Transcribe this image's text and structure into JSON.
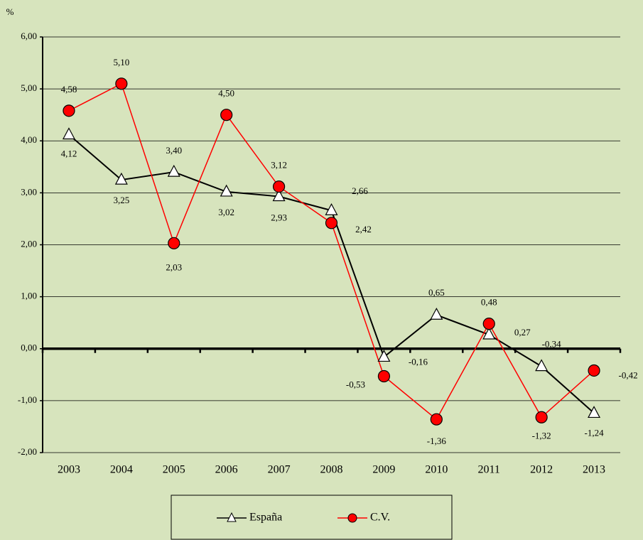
{
  "chart_data": {
    "type": "line",
    "y_unit": "%",
    "categories": [
      "2003",
      "2004",
      "2005",
      "2006",
      "2007",
      "2008",
      "2009",
      "2010",
      "2011",
      "2012",
      "2013"
    ],
    "series": [
      {
        "name": "España",
        "color": "#000000",
        "marker": "triangle",
        "values": [
          4.12,
          3.25,
          3.4,
          3.02,
          2.93,
          2.66,
          -0.16,
          0.65,
          0.27,
          -0.34,
          -1.24
        ],
        "value_labels": [
          "4,12",
          "3,25",
          "3,40",
          "3,02",
          "2,93",
          "2,66",
          "-0,16",
          "0,65",
          "0,27",
          "-0,34",
          "-1,24"
        ]
      },
      {
        "name": "C.V.",
        "color": "#ff0000",
        "marker": "circle",
        "values": [
          4.58,
          5.1,
          2.03,
          4.5,
          3.12,
          2.42,
          -0.53,
          -1.36,
          0.48,
          -1.32,
          -0.42
        ],
        "value_labels": [
          "4,58",
          "5,10",
          "2,03",
          "4,50",
          "3,12",
          "2,42",
          "-0,53",
          "-1,36",
          "0,48",
          "-1,32",
          "-0,42"
        ]
      }
    ],
    "ylim": [
      -2,
      6
    ],
    "yticks": [
      {
        "value": -2,
        "label": "-2,00"
      },
      {
        "value": -1,
        "label": "-1,00"
      },
      {
        "value": 0,
        "label": "0,00"
      },
      {
        "value": 1,
        "label": "1,00"
      },
      {
        "value": 2,
        "label": "2,00"
      },
      {
        "value": 3,
        "label": "3,00"
      },
      {
        "value": 4,
        "label": "4,00"
      },
      {
        "value": 5,
        "label": "5,00"
      },
      {
        "value": 6,
        "label": "6,00"
      }
    ],
    "grid": true,
    "legend": "bottom"
  }
}
